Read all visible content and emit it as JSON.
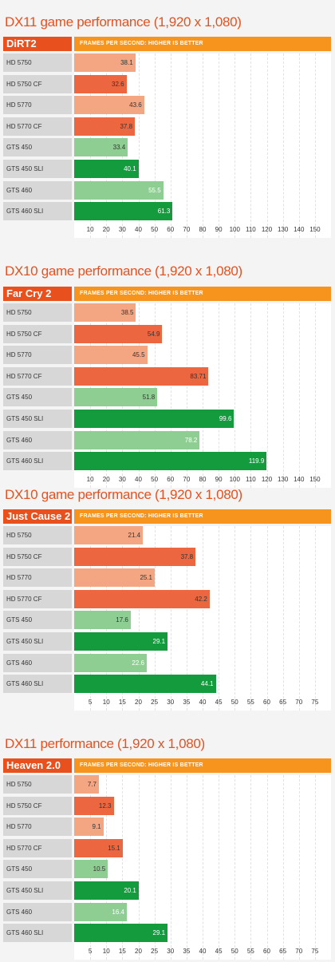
{
  "colors": {
    "title": "#e8501e",
    "game_label_bg": "#e8501e",
    "header_bg": "#f7941d",
    "hd_light": "#f4a582",
    "hd_dark": "#ec6640",
    "gts_light": "#8fce92",
    "gts_dark": "#139b3e",
    "label_bg": "#d7d7d7"
  },
  "chart_data": [
    {
      "type": "bar",
      "orientation": "horizontal",
      "title": "DX11 game performance (1,920 x 1,080)",
      "game": "DiRT2",
      "header": "FRAMES PER SECOND: HIGHER IS BETTER",
      "categories": [
        "HD 5750",
        "HD 5750 CF",
        "HD 5770",
        "HD 5770 CF",
        "GTS 450",
        "GTS 450 SLI",
        "GTS 460",
        "GTS 460 SLI"
      ],
      "values": [
        38.1,
        32.6,
        43.6,
        37.8,
        33.4,
        40.1,
        55.5,
        61.3
      ],
      "value_labels": [
        "38.1",
        "32.6",
        "43.6",
        "37.8",
        "33.4",
        "40.1",
        "55.5",
        "61.3"
      ],
      "xlim": [
        0,
        160
      ],
      "ticks": [
        10,
        20,
        30,
        40,
        50,
        60,
        70,
        80,
        90,
        100,
        110,
        120,
        130,
        140,
        150
      ],
      "grid": true
    },
    {
      "type": "bar",
      "orientation": "horizontal",
      "title": "DX10 game performance (1,920 x 1,080)",
      "game": "Far Cry 2",
      "header": "FRAMES PER SECOND: HIGHER IS BETTER",
      "categories": [
        "HD 5750",
        "HD 5750 CF",
        "HD 5770",
        "HD 5770 CF",
        "GTS 450",
        "GTS 450 SLI",
        "GTS 460",
        "GTS 460 SLI"
      ],
      "values": [
        38.5,
        54.9,
        45.5,
        83.71,
        51.8,
        99.6,
        78.2,
        119.9
      ],
      "value_labels": [
        "38.5",
        "54.9",
        "45.5",
        "83.71",
        "51.8",
        "99.6",
        "78.2",
        "119.9"
      ],
      "xlim": [
        0,
        160
      ],
      "ticks": [
        10,
        20,
        30,
        40,
        50,
        60,
        70,
        80,
        90,
        100,
        110,
        120,
        130,
        140,
        150
      ],
      "grid": true
    },
    {
      "type": "bar",
      "orientation": "horizontal",
      "title": "DX10 game performance (1,920 x 1,080)",
      "game": "Just Cause 2",
      "header": "FRAMES PER SECOND: HIGHER IS BETTER",
      "categories": [
        "HD 5750",
        "HD 5750 CF",
        "HD 5770",
        "HD 5770 CF",
        "GTS 450",
        "GTS 450 SLI",
        "GTS 460",
        "GTS 460 SLI"
      ],
      "values": [
        21.4,
        37.8,
        25.1,
        42.2,
        17.6,
        29.1,
        22.6,
        44.1
      ],
      "value_labels": [
        "21.4",
        "37.8",
        "25.1",
        "42.2",
        "17.6",
        "29.1",
        "22.6",
        "44.1"
      ],
      "xlim": [
        0,
        80
      ],
      "ticks": [
        5,
        10,
        15,
        20,
        25,
        30,
        35,
        40,
        45,
        50,
        55,
        60,
        65,
        70,
        75
      ],
      "grid": true
    },
    {
      "type": "bar",
      "orientation": "horizontal",
      "title": "DX11 performance (1,920 x 1,080)",
      "game": "Heaven 2.0",
      "header": "FRAMES PER SECOND: HIGHER IS BETTER",
      "categories": [
        "HD 5750",
        "HD 5750 CF",
        "HD 5770",
        "HD 5770 CF",
        "GTS 450",
        "GTS 450 SLI",
        "GTS 460",
        "GTS 460 SLI"
      ],
      "values": [
        7.7,
        12.3,
        9.1,
        15.1,
        10.5,
        20.1,
        16.4,
        29.1
      ],
      "value_labels": [
        "7.7",
        "12.3",
        "9.1",
        "15.1",
        "10.5",
        "20.1",
        "16.4",
        "29.1"
      ],
      "xlim": [
        0,
        80
      ],
      "ticks": [
        5,
        10,
        15,
        20,
        25,
        30,
        35,
        40,
        45,
        50,
        55,
        60,
        65,
        70,
        75
      ],
      "grid": true
    }
  ]
}
